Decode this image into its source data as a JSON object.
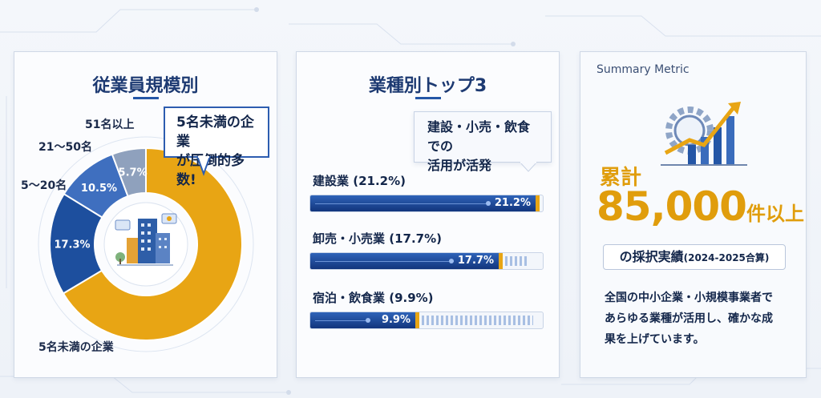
{
  "colors": {
    "primary_blue": "#1d4f9e",
    "mid_blue": "#3f6fbf",
    "gray_blue": "#8fa1bd",
    "accent_gold": "#e8a514",
    "title_blue": "#1d3a72"
  },
  "card1": {
    "title": "従業員規模別",
    "callout_line1": "5名未満の企業",
    "callout_line2": "が圧倒的多数!",
    "label_5orless": "5名未満の企業",
    "label_5to20": "5〜20名",
    "label_21to50": "21〜50名",
    "label_51plus": "51名以上",
    "icon": "office-buildings-icon"
  },
  "card2": {
    "title": "業種別トップ3",
    "callout_line1": "建設・小売・飲食での",
    "callout_line2": "活用が活発"
  },
  "card3": {
    "header": "Summary Metric",
    "icon": "gear-growth-chart-icon",
    "cumulative_label": "累計",
    "big_number": "85,000",
    "big_suffix": "件以上",
    "adoption_main": "の採択実績",
    "adoption_period": "(2024-2025合算)",
    "desc_line1": "全国の中小企業・小規模事業者で",
    "desc_line2": "あらゆる業種が活用し、確かな成",
    "desc_line3": "果を上げています。"
  },
  "chart_data": [
    {
      "type": "pie",
      "title": "従業員規模別",
      "categories": [
        "5名未満の企業",
        "5〜20名",
        "21〜50名",
        "51名以上"
      ],
      "values": [
        66.3,
        17.3,
        10.5,
        5.7
      ],
      "value_labels": [
        "",
        "17.3%",
        "10.5%",
        "5.7%"
      ],
      "colors": [
        "#e8a514",
        "#1d4f9e",
        "#3f6fbf",
        "#8fa1bd"
      ]
    },
    {
      "type": "bar",
      "title": "業種別トップ3",
      "categories": [
        "建設業 (21.2%)",
        "卸売・小売業 (17.7%)",
        "宿泊・飲食業 (9.9%)"
      ],
      "values": [
        21.2,
        17.7,
        9.9
      ],
      "value_labels": [
        "21.2%",
        "17.7%",
        "9.9%"
      ],
      "xlim": [
        0,
        22
      ]
    }
  ]
}
